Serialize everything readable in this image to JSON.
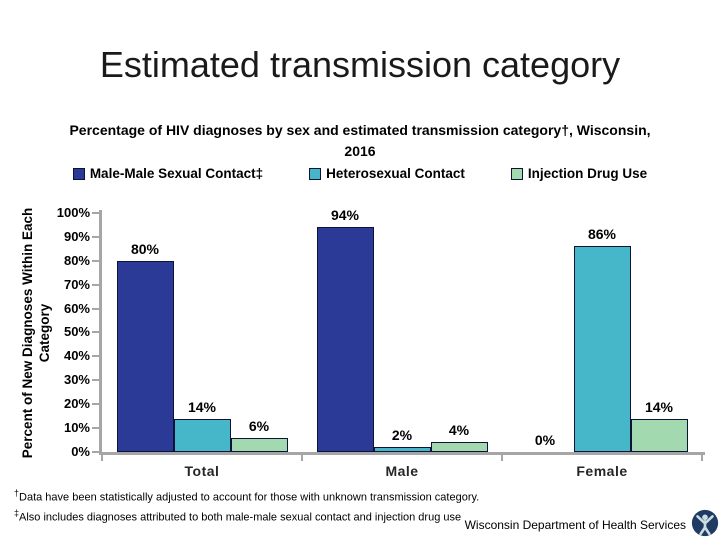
{
  "title": "Estimated transmission category",
  "subtitle_line1": "Percentage of HIV diagnoses by sex and estimated transmission category†, Wisconsin,",
  "subtitle_line2": "2016",
  "chart_data": {
    "type": "bar",
    "title": "Percentage of HIV diagnoses by sex and estimated transmission category†, Wisconsin, 2016",
    "categories": [
      "Total",
      "Male",
      "Female"
    ],
    "series": [
      {
        "name": "Male-Male Sexual Contact‡",
        "color": "#2b3a96",
        "values": [
          80,
          94,
          0
        ]
      },
      {
        "name": "Heterosexual Contact",
        "color": "#45b7c8",
        "values": [
          14,
          2,
          86
        ]
      },
      {
        "name": "Injection Drug Use",
        "color": "#a2d9af",
        "values": [
          6,
          4,
          14
        ]
      }
    ],
    "data_labels": [
      [
        "80%",
        "14%",
        "6%"
      ],
      [
        "94%",
        "2%",
        "4%"
      ],
      [
        "0%",
        "86%",
        "14%"
      ]
    ],
    "xlabel": "",
    "ylabel_line1": "Percent of New Diagnoses Within Each",
    "ylabel_line2": "Category",
    "ylim": [
      0,
      100
    ],
    "yticks": [
      "100%",
      "90%",
      "80%",
      "70%",
      "60%",
      "50%",
      "40%",
      "30%",
      "20%",
      "10%",
      "0%"
    ],
    "grid": false,
    "legend_position": "top",
    "axis_color": "#a6a6a6",
    "bar_border_color": "#0e1237"
  },
  "footnotes": [
    {
      "marker": "†",
      "text": "Data have been statistically adjusted to account for those with unknown transmission category."
    },
    {
      "marker": "‡",
      "text": "Also includes diagnoses attributed to both male-male sexual contact and injection drug use"
    }
  ],
  "source": "Wisconsin Department of Health Services",
  "logo": {
    "name": "wisconsin-dhs-logo",
    "circle_color": "#1f3b63",
    "figure_color": "#c9dfe2"
  }
}
